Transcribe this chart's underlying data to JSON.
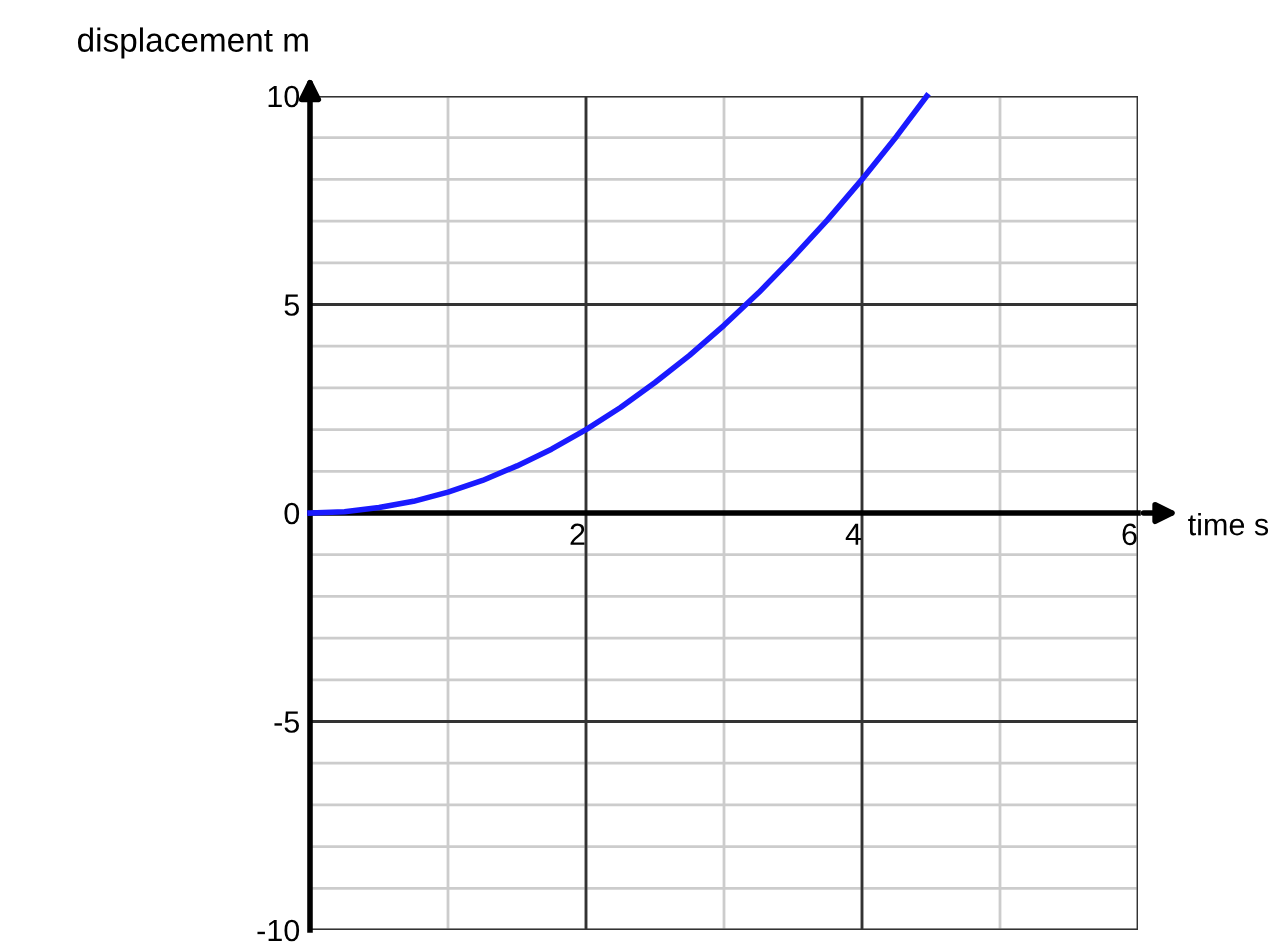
{
  "chart_data": {
    "type": "line",
    "xlabel": "time s",
    "ylabel": "displacement m",
    "x": [
      0,
      0.25,
      0.5,
      0.75,
      1,
      1.25,
      1.5,
      1.75,
      2,
      2.25,
      2.5,
      2.75,
      3,
      3.25,
      3.5,
      3.75,
      4,
      4.25,
      4.47
    ],
    "series": [
      {
        "color": "#1a1aff",
        "values": [
          0,
          0.03,
          0.13,
          0.28,
          0.5,
          0.78,
          1.13,
          1.53,
          2,
          2.53,
          3.13,
          3.78,
          4.5,
          5.28,
          6.13,
          7.03,
          8,
          9.03,
          10
        ]
      }
    ],
    "xlim": [
      0,
      6
    ],
    "ylim": [
      -10,
      10
    ],
    "xticks": [
      2,
      4,
      6
    ],
    "yticks": [
      -10,
      -5,
      0,
      5,
      10
    ],
    "grid": true,
    "line_style": "solid",
    "marker": "none"
  }
}
